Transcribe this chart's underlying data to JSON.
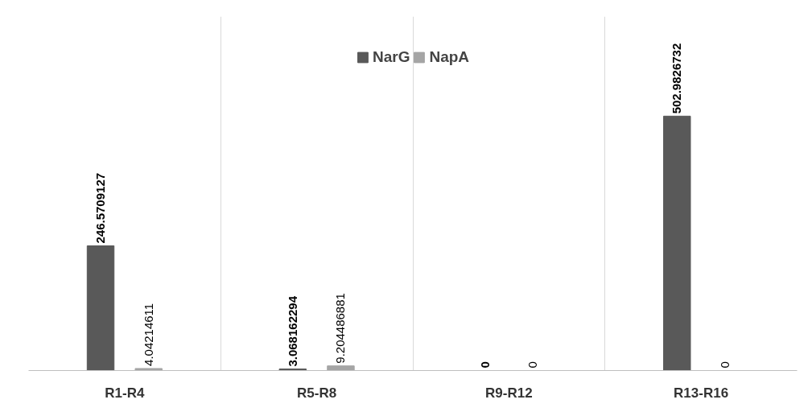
{
  "chart_data": {
    "type": "bar",
    "categories": [
      "R1-R4",
      "R5-R8",
      "R9-R12",
      "R13-R16"
    ],
    "series": [
      {
        "name": "NarG",
        "color": "#595959",
        "values": [
          246.5709127,
          3.068162294,
          0,
          502.9826732
        ]
      },
      {
        "name": "NapA",
        "color": "#a5a5a5",
        "values": [
          4.04214611,
          9.204486881,
          0,
          0
        ]
      }
    ],
    "ylim": [
      0,
      700
    ],
    "tick_labels": "x",
    "grid": "x",
    "legend": "top",
    "data_labels": true
  }
}
